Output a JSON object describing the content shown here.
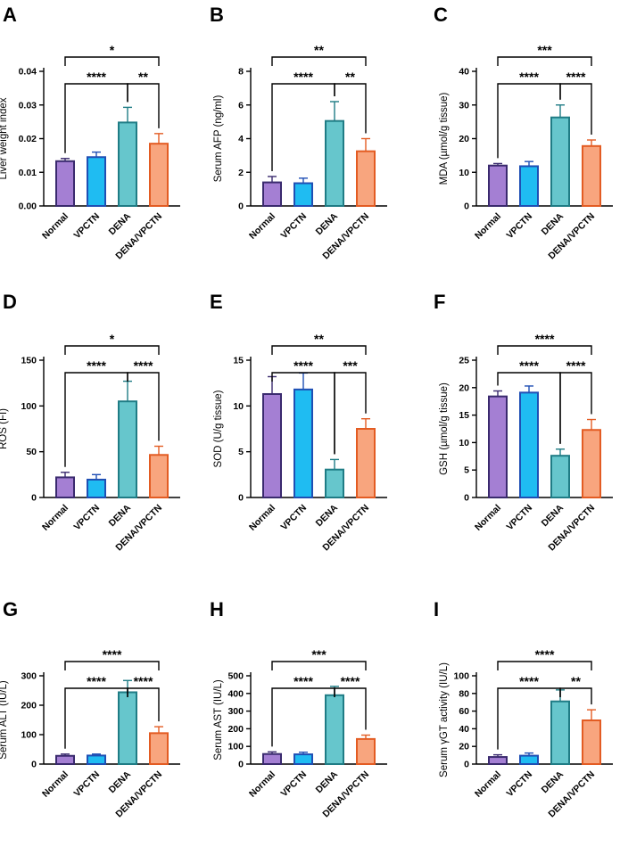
{
  "groups": [
    "Normal",
    "VPCTN",
    "DENA",
    "DENA/VPCTN"
  ],
  "colors": {
    "fills": [
      "#a47fd3",
      "#1fbcf2",
      "#66c6cc",
      "#f8a57e"
    ],
    "strokes": [
      "#3a2a6e",
      "#1f4fb4",
      "#1f7c85",
      "#e35c23"
    ]
  },
  "chart_data": [
    {
      "panel": "A",
      "type": "bar",
      "ylabel": "Liver weight index",
      "ylim": [
        0,
        0.04
      ],
      "yticks": [
        0,
        0.01,
        0.02,
        0.03,
        0.04
      ],
      "ytick_labels": [
        "0.00",
        "0.01",
        "0.02",
        "0.03",
        "0.04"
      ],
      "categories": [
        "Normal",
        "VPCTN",
        "DENA",
        "DENA/VPCTN"
      ],
      "values": [
        0.0133,
        0.0145,
        0.0248,
        0.0185
      ],
      "errors": [
        0.0008,
        0.0015,
        0.0045,
        0.003
      ],
      "significance": [
        {
          "from": 0,
          "to": 3,
          "label": "*"
        },
        {
          "from": 0,
          "to": 2,
          "label": "****"
        },
        {
          "from": 2,
          "to": 3,
          "label": "**"
        }
      ]
    },
    {
      "panel": "B",
      "type": "bar",
      "ylabel": "Serum AFP (ng/ml)",
      "ylim": [
        0,
        8
      ],
      "yticks": [
        0,
        2,
        4,
        6,
        8
      ],
      "ytick_labels": [
        "0",
        "2",
        "4",
        "6",
        "8"
      ],
      "categories": [
        "Normal",
        "VPCTN",
        "DENA",
        "DENA/VPCTN"
      ],
      "values": [
        1.4,
        1.35,
        5.05,
        3.25
      ],
      "errors": [
        0.35,
        0.3,
        1.15,
        0.75
      ],
      "significance": [
        {
          "from": 0,
          "to": 3,
          "label": "**"
        },
        {
          "from": 0,
          "to": 2,
          "label": "****"
        },
        {
          "from": 2,
          "to": 3,
          "label": "**"
        }
      ]
    },
    {
      "panel": "C",
      "type": "bar",
      "ylabel": "MDA (µmol/g tissue)",
      "ylim": [
        0,
        40
      ],
      "yticks": [
        0,
        10,
        20,
        30,
        40
      ],
      "ytick_labels": [
        "0",
        "10",
        "20",
        "30",
        "40"
      ],
      "categories": [
        "Normal",
        "VPCTN",
        "DENA",
        "DENA/VPCTN"
      ],
      "values": [
        12,
        11.8,
        26.3,
        17.8
      ],
      "errors": [
        0.6,
        1.4,
        3.7,
        1.8
      ],
      "significance": [
        {
          "from": 0,
          "to": 3,
          "label": "***"
        },
        {
          "from": 0,
          "to": 2,
          "label": "****"
        },
        {
          "from": 2,
          "to": 3,
          "label": "****"
        }
      ]
    },
    {
      "panel": "D",
      "type": "bar",
      "ylabel": "ROS (FI)",
      "ylim": [
        0,
        150
      ],
      "yticks": [
        0,
        50,
        100,
        150
      ],
      "ytick_labels": [
        "0",
        "50",
        "100",
        "150"
      ],
      "categories": [
        "Normal",
        "VPCTN",
        "DENA",
        "DENA/VPCTN"
      ],
      "values": [
        22,
        19.5,
        105,
        46.5
      ],
      "errors": [
        5.5,
        5.5,
        22,
        9.5
      ],
      "significance": [
        {
          "from": 0,
          "to": 3,
          "label": "*"
        },
        {
          "from": 0,
          "to": 2,
          "label": "****"
        },
        {
          "from": 2,
          "to": 3,
          "label": "****"
        }
      ]
    },
    {
      "panel": "E",
      "type": "bar",
      "ylabel": "SOD (U/g tissue)",
      "ylim": [
        0,
        15
      ],
      "yticks": [
        0,
        5,
        10,
        15
      ],
      "ytick_labels": [
        "0",
        "5",
        "10",
        "15"
      ],
      "categories": [
        "Normal",
        "VPCTN",
        "DENA",
        "DENA/VPCTN"
      ],
      "values": [
        11.3,
        11.8,
        3.05,
        7.5
      ],
      "errors": [
        1.9,
        1.8,
        1.1,
        1.1
      ],
      "significance": [
        {
          "from": 0,
          "to": 3,
          "label": "**"
        },
        {
          "from": 0,
          "to": 2,
          "label": "****"
        },
        {
          "from": 2,
          "to": 3,
          "label": "***"
        }
      ]
    },
    {
      "panel": "F",
      "type": "bar",
      "ylabel": "GSH (µmol/g tissue)",
      "ylim": [
        0,
        25
      ],
      "yticks": [
        0,
        5,
        10,
        15,
        20,
        25
      ],
      "ytick_labels": [
        "0",
        "5",
        "10",
        "15",
        "20",
        "25"
      ],
      "categories": [
        "Normal",
        "VPCTN",
        "DENA",
        "DENA/VPCTN"
      ],
      "values": [
        18.4,
        19.1,
        7.6,
        12.3
      ],
      "errors": [
        1.0,
        1.2,
        1.2,
        1.9
      ],
      "significance": [
        {
          "from": 0,
          "to": 3,
          "label": "****"
        },
        {
          "from": 0,
          "to": 2,
          "label": "****"
        },
        {
          "from": 2,
          "to": 3,
          "label": "****"
        }
      ]
    },
    {
      "panel": "G",
      "type": "bar",
      "ylabel": "Serum ALT (IU/L)",
      "ylim": [
        0,
        300
      ],
      "yticks": [
        0,
        100,
        200,
        300
      ],
      "ytick_labels": [
        "0",
        "100",
        "200",
        "300"
      ],
      "categories": [
        "Normal",
        "VPCTN",
        "DENA",
        "DENA/VPCTN"
      ],
      "values": [
        28,
        29,
        244,
        105
      ],
      "errors": [
        6,
        5,
        40,
        22
      ],
      "significance": [
        {
          "from": 0,
          "to": 3,
          "label": "****"
        },
        {
          "from": 0,
          "to": 2,
          "label": "****"
        },
        {
          "from": 2,
          "to": 3,
          "label": "****"
        }
      ]
    },
    {
      "panel": "H",
      "type": "bar",
      "ylabel": "Serum AST (IU/L)",
      "ylim": [
        0,
        500
      ],
      "yticks": [
        0,
        100,
        200,
        300,
        400,
        500
      ],
      "ytick_labels": [
        "0",
        "100",
        "200",
        "300",
        "400",
        "500"
      ],
      "categories": [
        "Normal",
        "VPCTN",
        "DENA",
        "DENA/VPCTN"
      ],
      "values": [
        57,
        55,
        390,
        142
      ],
      "errors": [
        12,
        12,
        50,
        22
      ],
      "significance": [
        {
          "from": 0,
          "to": 3,
          "label": "***"
        },
        {
          "from": 0,
          "to": 2,
          "label": "****"
        },
        {
          "from": 2,
          "to": 3,
          "label": "****"
        }
      ]
    },
    {
      "panel": "I",
      "type": "bar",
      "ylabel": "Serum γGT activity (IU/L)",
      "ylim": [
        0,
        100
      ],
      "yticks": [
        0,
        20,
        40,
        60,
        80,
        100
      ],
      "ytick_labels": [
        "0",
        "20",
        "40",
        "60",
        "80",
        "100"
      ],
      "categories": [
        "Normal",
        "VPCTN",
        "DENA",
        "DENA/VPCTN"
      ],
      "values": [
        8,
        9.5,
        71,
        49.5
      ],
      "errors": [
        2.5,
        3,
        13,
        12
      ],
      "significance": [
        {
          "from": 0,
          "to": 3,
          "label": "****"
        },
        {
          "from": 0,
          "to": 2,
          "label": "****"
        },
        {
          "from": 2,
          "to": 3,
          "label": "**"
        }
      ]
    }
  ]
}
